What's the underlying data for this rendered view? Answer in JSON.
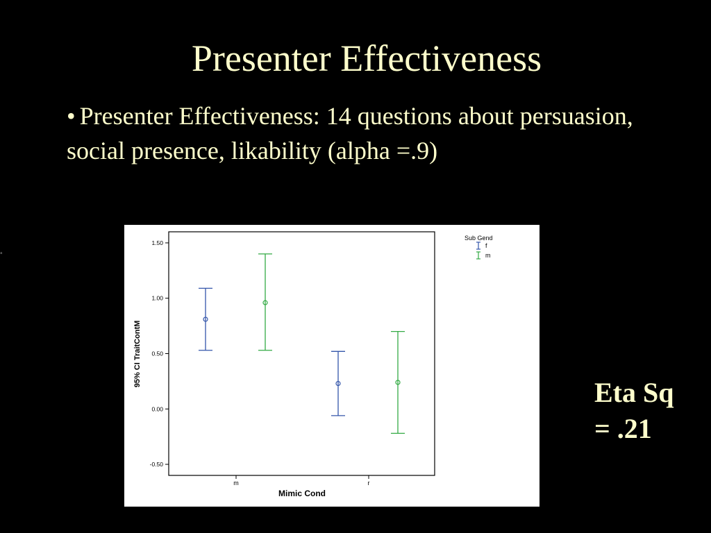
{
  "slide": {
    "title": "Presenter Effectiveness",
    "bullet_symbol": "•",
    "bullet_text": "Presenter Effectiveness: 14  questions about persuasion, social presence, likability (alpha =.9)",
    "stat_line1": "Eta Sq",
    "stat_line2": "= .21"
  },
  "colors": {
    "background": "#000000",
    "text": "#FFFFCC",
    "series_f": "#3355AA",
    "series_m": "#33AA44"
  },
  "chart_data": {
    "type": "errorbar",
    "xlabel": "Mimic Cond",
    "ylabel": "95% CI TraitContM",
    "categories": [
      "m",
      "r"
    ],
    "ylim": [
      -0.6,
      1.6
    ],
    "yticks": [
      -0.5,
      0.0,
      0.5,
      1.0,
      1.5
    ],
    "ytick_labels": [
      "-0.50",
      "0.00",
      "0.50",
      "1.00",
      "1.50"
    ],
    "legend_title": "Sub Gend",
    "legend_placement": "top-right",
    "series": [
      {
        "name": "f",
        "color": "#3355AA",
        "mean": [
          0.81,
          0.23
        ],
        "lower": [
          0.53,
          -0.06
        ],
        "upper": [
          1.09,
          0.52
        ]
      },
      {
        "name": "m",
        "color": "#33AA44",
        "mean": [
          0.96,
          0.24
        ],
        "lower": [
          0.53,
          -0.22
        ],
        "upper": [
          1.4,
          0.7
        ]
      }
    ]
  }
}
